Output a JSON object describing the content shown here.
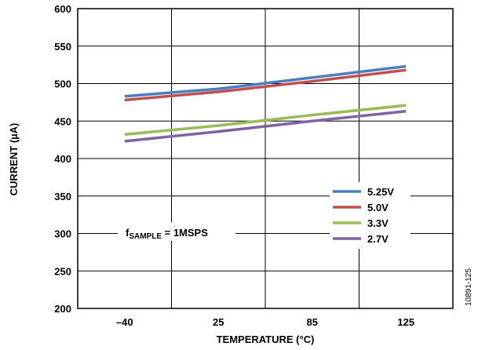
{
  "chart_data": {
    "type": "line",
    "xlabel": "TEMPERATURE (°C)",
    "ylabel": "CURRENT (µA)",
    "categories": [
      "–40",
      "25",
      "85",
      "125"
    ],
    "x": [
      -40,
      25,
      85,
      125
    ],
    "ylim": [
      200,
      600
    ],
    "yticks": [
      200,
      250,
      300,
      350,
      400,
      450,
      500,
      550,
      600
    ],
    "grid": true,
    "legend_position": "right",
    "series": [
      {
        "name": "5.25V",
        "color": "#4a7ebf",
        "values": [
          483,
          493,
          508,
          523
        ]
      },
      {
        "name": "5.0V",
        "color": "#c0504d",
        "values": [
          478,
          489,
          503,
          518
        ]
      },
      {
        "name": "3.3V",
        "color": "#9bbb59",
        "values": [
          432,
          444,
          458,
          471
        ]
      },
      {
        "name": "2.7V",
        "color": "#8064a2",
        "values": [
          423,
          436,
          450,
          463
        ]
      }
    ],
    "annotation": {
      "prefix": "f",
      "subscript": "SAMPLE",
      "suffix": " = 1MSPS"
    },
    "figure_id": "10891-125"
  }
}
